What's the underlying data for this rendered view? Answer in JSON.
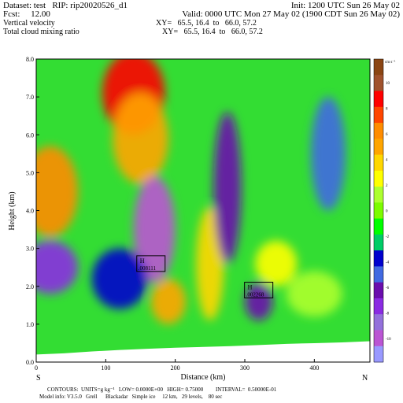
{
  "header": {
    "dataset_line": "Dataset: test   RIP: rip20020526_d1",
    "init_line": "Init: 1200 UTC Sun 26 May 02",
    "fcst_line": "Fcst:     12.00",
    "valid_line": "Valid: 0000 UTC Mon 27 May 02 (1900 CDT Sun 26 May 02)",
    "field1_name": "Vertical velocity",
    "field1_xy": "XY=   65.5, 16.4  to   66.0, 57.2",
    "field2_name": "Total cloud mixing ratio",
    "field2_xy": "XY=   65.5, 16.4  to   66.0, 57.2"
  },
  "chart_data": {
    "type": "heatmap",
    "title": "",
    "xlabel": "Distance (km)",
    "ylabel": "Height (km)",
    "xlim": [
      0,
      480
    ],
    "ylim": [
      0,
      8
    ],
    "x_ticks": [
      0,
      100,
      200,
      300,
      400
    ],
    "y_ticks": [
      "0.0",
      "1.0",
      "2.0",
      "3.0",
      "4.0",
      "5.0",
      "6.0",
      "7.0",
      "8.0"
    ],
    "x_end_labels": {
      "left": "S",
      "right": "N"
    },
    "colorbar": {
      "unit": "cm s⁻¹",
      "ticks": [
        10,
        8,
        6,
        4,
        2,
        0,
        -2,
        -4,
        -6,
        -8,
        -10
      ],
      "colors": [
        "#8B4513",
        "#A0522D",
        "#FF0000",
        "#FF4500",
        "#FF8C00",
        "#FFA500",
        "#FFD700",
        "#FFFF00",
        "#ADFF2F",
        "#7CFC00",
        "#00FF00",
        "#00CC66",
        "#0000CD",
        "#4169E1",
        "#6A0DAD",
        "#8A2BE2",
        "#9370DB",
        "#BA55D3",
        "#9999FF"
      ]
    },
    "min_max_labels": [
      {
        "letter": "H",
        "value": ".008111",
        "x_km": 165,
        "z_km": 2.6
      },
      {
        "letter": "H",
        "value": ".002268",
        "x_km": 320,
        "z_km": 1.9
      }
    ],
    "blobs": [
      {
        "x": 20,
        "z": 4.5,
        "rx": 40,
        "rz": 1.2,
        "value": 6
      },
      {
        "x": 140,
        "z": 7.1,
        "rx": 45,
        "rz": 1.1,
        "value": 8
      },
      {
        "x": 150,
        "z": 5.9,
        "rx": 40,
        "rz": 1.2,
        "value": 4
      },
      {
        "x": 170,
        "z": 3.5,
        "rx": 30,
        "rz": 1.4,
        "value": -9
      },
      {
        "x": 20,
        "z": 2.5,
        "rx": 40,
        "rz": 0.7,
        "value": -7
      },
      {
        "x": 190,
        "z": 1.6,
        "rx": 25,
        "rz": 0.6,
        "value": 5
      },
      {
        "x": 250,
        "z": 2.6,
        "rx": 20,
        "rz": 1.5,
        "value": 3
      },
      {
        "x": 275,
        "z": 4.6,
        "rx": 20,
        "rz": 2.0,
        "value": -6
      },
      {
        "x": 320,
        "z": 1.6,
        "rx": 20,
        "rz": 0.5,
        "value": -5
      },
      {
        "x": 345,
        "z": 2.6,
        "rx": 30,
        "rz": 0.6,
        "value": 2
      },
      {
        "x": 420,
        "z": 5.5,
        "rx": 25,
        "rz": 1.5,
        "value": -4
      },
      {
        "x": 400,
        "z": 1.8,
        "rx": 40,
        "rz": 0.6,
        "value": 1
      },
      {
        "x": 120,
        "z": 2.2,
        "rx": 40,
        "rz": 0.8,
        "value": -3
      }
    ],
    "terrain_z_km": [
      0.2,
      0.23,
      0.28,
      0.32,
      0.35,
      0.38,
      0.4,
      0.42,
      0.45,
      0.48,
      0.5,
      0.52,
      0.55
    ]
  },
  "footer": {
    "contours_line": "CONTOURS:  UNITS=g kg⁻¹   LOW= 0.0000E+00   HIGH= 0.75000         INTERVAL=  0.50000E-01",
    "model_line": "Model info: V3.5.0   Grell      Blackadar   Simple ice     12 km,   29 levels,    80 sec"
  }
}
